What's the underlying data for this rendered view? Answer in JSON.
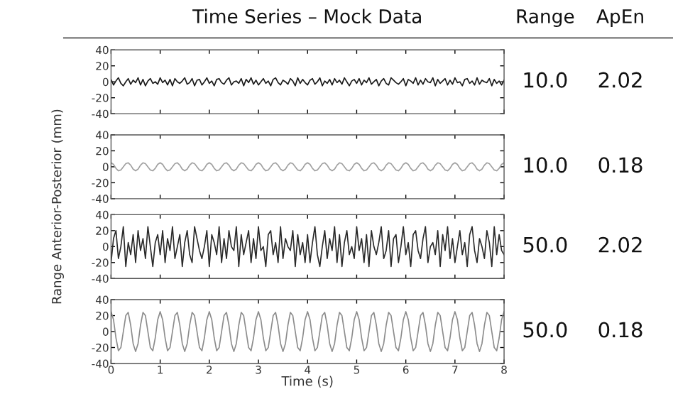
{
  "chart_data": [
    {
      "type": "line",
      "title": "Time Series – Mock Data",
      "ylabel": "Range Anterior-Posterior (mm)",
      "xlim": [
        0,
        8
      ],
      "ylim": [
        -40,
        40
      ],
      "yticks": [
        -40,
        -20,
        0,
        20,
        40
      ],
      "tick_labels": "y",
      "grid": false,
      "legend": false,
      "x": [
        0,
        0.05,
        0.1,
        0.15,
        0.2,
        0.25,
        0.3,
        0.35,
        0.4,
        0.45,
        0.5,
        0.55,
        0.6,
        0.65,
        0.7,
        0.75,
        0.8,
        0.85,
        0.9,
        0.95,
        1,
        1.05,
        1.1,
        1.15,
        1.2,
        1.25,
        1.3,
        1.35,
        1.4,
        1.45,
        1.5,
        1.55,
        1.6,
        1.65,
        1.7,
        1.75,
        1.8,
        1.85,
        1.9,
        1.95,
        2,
        2.05,
        2.1,
        2.15,
        2.2,
        2.25,
        2.3,
        2.35,
        2.4,
        2.45,
        2.5,
        2.55,
        2.6,
        2.65,
        2.7,
        2.75,
        2.8,
        2.85,
        2.9,
        2.95,
        3,
        3.05,
        3.1,
        3.15,
        3.2,
        3.25,
        3.3,
        3.35,
        3.4,
        3.45,
        3.5,
        3.55,
        3.6,
        3.65,
        3.7,
        3.75,
        3.8,
        3.85,
        3.9,
        3.95,
        4,
        4.05,
        4.1,
        4.15,
        4.2,
        4.25,
        4.3,
        4.35,
        4.4,
        4.45,
        4.5,
        4.55,
        4.6,
        4.65,
        4.7,
        4.75,
        4.8,
        4.85,
        4.9,
        4.95,
        5,
        5.05,
        5.1,
        5.15,
        5.2,
        5.25,
        5.3,
        5.35,
        5.4,
        5.45,
        5.5,
        5.55,
        5.6,
        5.65,
        5.7,
        5.75,
        5.8,
        5.85,
        5.9,
        5.95,
        6,
        6.05,
        6.1,
        6.15,
        6.2,
        6.25,
        6.3,
        6.35,
        6.4,
        6.45,
        6.5,
        6.55,
        6.6,
        6.65,
        6.7,
        6.75,
        6.8,
        6.85,
        6.9,
        6.95,
        7,
        7.05,
        7.1,
        7.15,
        7.2,
        7.25,
        7.3,
        7.35,
        7.4,
        7.45,
        7.5,
        7.55,
        7.6,
        7.65,
        7.7,
        7.75,
        7.8,
        7.85,
        7.9,
        7.95,
        8
      ],
      "series": [
        {
          "color": "#1a1a1a",
          "values": [
            3,
            -4,
            1,
            5,
            -2,
            -5,
            0,
            4,
            -3,
            2,
            -1,
            5,
            -4,
            3,
            -5,
            1,
            4,
            -2,
            0,
            -3,
            5,
            -1,
            2,
            -4,
            3,
            -5,
            4,
            0,
            -2,
            1,
            5,
            -3,
            -1,
            4,
            -5,
            2,
            3,
            -4,
            0,
            5,
            -2,
            1,
            -5,
            3,
            4,
            -1,
            -3,
            2,
            5,
            -4,
            0,
            1,
            -2,
            4,
            -5,
            3,
            -1,
            5,
            -3,
            2,
            -4,
            0,
            4,
            -2,
            1,
            -5,
            3,
            5,
            -1,
            -4,
            2,
            0,
            -3,
            4,
            1,
            -5,
            5,
            -2,
            3,
            -1,
            -4,
            2,
            4,
            -3,
            0,
            5,
            -5,
            1,
            -2,
            3,
            -4,
            4,
            -1,
            2,
            -3,
            5,
            0,
            -5,
            1,
            3,
            -2,
            4,
            -4,
            2,
            -1,
            5,
            -3,
            0,
            3,
            -5,
            1,
            4,
            -2,
            -4,
            5,
            2,
            -1,
            -3,
            0,
            4,
            -5,
            3,
            1,
            -2,
            5,
            -4,
            2,
            -3,
            4,
            0,
            -1,
            5,
            -5,
            3,
            -2,
            1,
            4,
            -4,
            2,
            -3,
            5,
            -1,
            0,
            -5,
            3,
            4,
            -2,
            1,
            -4,
            5,
            -3,
            2,
            0,
            -1,
            4,
            -5,
            3,
            -2,
            1,
            -4,
            2
          ]
        }
      ]
    },
    {
      "type": "line",
      "xlim": [
        0,
        8
      ],
      "ylim": [
        -40,
        40
      ],
      "yticks": [
        -40,
        -20,
        0,
        20,
        40
      ],
      "tick_labels": "y",
      "grid": false,
      "legend": false,
      "x": [
        0,
        0.05,
        0.1,
        0.15,
        0.2,
        0.25,
        0.3,
        0.35,
        0.4,
        0.45,
        0.5,
        0.55,
        0.6,
        0.65,
        0.7,
        0.75,
        0.8,
        0.85,
        0.9,
        0.95,
        1,
        1.05,
        1.1,
        1.15,
        1.2,
        1.25,
        1.3,
        1.35,
        1.4,
        1.45,
        1.5,
        1.55,
        1.6,
        1.65,
        1.7,
        1.75,
        1.8,
        1.85,
        1.9,
        1.95,
        2,
        2.05,
        2.1,
        2.15,
        2.2,
        2.25,
        2.3,
        2.35,
        2.4,
        2.45,
        2.5,
        2.55,
        2.6,
        2.65,
        2.7,
        2.75,
        2.8,
        2.85,
        2.9,
        2.95,
        3,
        3.05,
        3.1,
        3.15,
        3.2,
        3.25,
        3.3,
        3.35,
        3.4,
        3.45,
        3.5,
        3.55,
        3.6,
        3.65,
        3.7,
        3.75,
        3.8,
        3.85,
        3.9,
        3.95,
        4,
        4.05,
        4.1,
        4.15,
        4.2,
        4.25,
        4.3,
        4.35,
        4.4,
        4.45,
        4.5,
        4.55,
        4.6,
        4.65,
        4.7,
        4.75,
        4.8,
        4.85,
        4.9,
        4.95,
        5,
        5.05,
        5.1,
        5.15,
        5.2,
        5.25,
        5.3,
        5.35,
        5.4,
        5.45,
        5.5,
        5.55,
        5.6,
        5.65,
        5.7,
        5.75,
        5.8,
        5.85,
        5.9,
        5.95,
        6,
        6.05,
        6.1,
        6.15,
        6.2,
        6.25,
        6.3,
        6.35,
        6.4,
        6.45,
        6.5,
        6.55,
        6.6,
        6.65,
        6.7,
        6.75,
        6.8,
        6.85,
        6.9,
        6.95,
        7,
        7.05,
        7.1,
        7.15,
        7.2,
        7.25,
        7.3,
        7.35,
        7.4,
        7.45,
        7.5,
        7.55,
        7.6,
        7.65,
        7.7,
        7.75,
        7.8,
        7.85,
        7.9,
        7.95,
        8
      ],
      "series": [
        {
          "color": "#a0a0a0",
          "values": [
            5,
            3,
            -2,
            -5,
            -4,
            0,
            4,
            5,
            2,
            -3,
            -5,
            -3,
            2,
            5,
            4,
            0,
            -4,
            -5,
            -2,
            3,
            5,
            3,
            -2,
            -5,
            -4,
            0,
            4,
            5,
            2,
            -3,
            -5,
            -3,
            2,
            5,
            4,
            0,
            -4,
            -5,
            -2,
            3,
            5,
            3,
            -2,
            -5,
            -4,
            0,
            4,
            5,
            2,
            -3,
            -5,
            -3,
            2,
            5,
            4,
            0,
            -4,
            -5,
            -2,
            3,
            5,
            3,
            -2,
            -5,
            -4,
            0,
            4,
            5,
            2,
            -3,
            -5,
            -3,
            2,
            5,
            4,
            0,
            -4,
            -5,
            -2,
            3,
            5,
            3,
            -2,
            -5,
            -4,
            0,
            4,
            5,
            2,
            -3,
            -5,
            -3,
            2,
            5,
            4,
            0,
            -4,
            -5,
            -2,
            3,
            5,
            3,
            -2,
            -5,
            -4,
            0,
            4,
            5,
            2,
            -3,
            -5,
            -3,
            2,
            5,
            4,
            0,
            -4,
            -5,
            -2,
            3,
            5,
            3,
            -2,
            -5,
            -4,
            0,
            4,
            5,
            2,
            -3,
            -5,
            -3,
            2,
            5,
            4,
            0,
            -4,
            -5,
            -2,
            3,
            5,
            3,
            -2,
            -5,
            -4,
            0,
            4,
            5,
            2,
            -3,
            -5,
            -3,
            2,
            5,
            4,
            0,
            -4,
            -5,
            -2,
            3,
            5
          ]
        }
      ]
    },
    {
      "type": "line",
      "xlim": [
        0,
        8
      ],
      "ylim": [
        -40,
        40
      ],
      "yticks": [
        -40,
        -20,
        0,
        20,
        40
      ],
      "tick_labels": "y",
      "grid": false,
      "legend": false,
      "x": [
        0,
        0.05,
        0.1,
        0.15,
        0.2,
        0.25,
        0.3,
        0.35,
        0.4,
        0.45,
        0.5,
        0.55,
        0.6,
        0.65,
        0.7,
        0.75,
        0.8,
        0.85,
        0.9,
        0.95,
        1,
        1.05,
        1.1,
        1.15,
        1.2,
        1.25,
        1.3,
        1.35,
        1.4,
        1.45,
        1.5,
        1.55,
        1.6,
        1.65,
        1.7,
        1.75,
        1.8,
        1.85,
        1.9,
        1.95,
        2,
        2.05,
        2.1,
        2.15,
        2.2,
        2.25,
        2.3,
        2.35,
        2.4,
        2.45,
        2.5,
        2.55,
        2.6,
        2.65,
        2.7,
        2.75,
        2.8,
        2.85,
        2.9,
        2.95,
        3,
        3.05,
        3.1,
        3.15,
        3.2,
        3.25,
        3.3,
        3.35,
        3.4,
        3.45,
        3.5,
        3.55,
        3.6,
        3.65,
        3.7,
        3.75,
        3.8,
        3.85,
        3.9,
        3.95,
        4,
        4.05,
        4.1,
        4.15,
        4.2,
        4.25,
        4.3,
        4.35,
        4.4,
        4.45,
        4.5,
        4.55,
        4.6,
        4.65,
        4.7,
        4.75,
        4.8,
        4.85,
        4.9,
        4.95,
        5,
        5.05,
        5.1,
        5.15,
        5.2,
        5.25,
        5.3,
        5.35,
        5.4,
        5.45,
        5.5,
        5.55,
        5.6,
        5.65,
        5.7,
        5.75,
        5.8,
        5.85,
        5.9,
        5.95,
        6,
        6.05,
        6.1,
        6.15,
        6.2,
        6.25,
        6.3,
        6.35,
        6.4,
        6.45,
        6.5,
        6.55,
        6.6,
        6.65,
        6.7,
        6.75,
        6.8,
        6.85,
        6.9,
        6.95,
        7,
        7.05,
        7.1,
        7.15,
        7.2,
        7.25,
        7.3,
        7.35,
        7.4,
        7.45,
        7.5,
        7.55,
        7.6,
        7.65,
        7.7,
        7.75,
        7.8,
        7.85,
        7.9,
        7.95,
        8
      ],
      "series": [
        {
          "color": "#2a2a2a",
          "values": [
            -20,
            10,
            20,
            -15,
            0,
            25,
            -25,
            5,
            -10,
            15,
            -20,
            20,
            -5,
            10,
            -15,
            25,
            0,
            -25,
            5,
            15,
            -10,
            20,
            -20,
            10,
            -5,
            25,
            -15,
            0,
            15,
            -25,
            5,
            20,
            -10,
            -20,
            25,
            10,
            -5,
            -15,
            0,
            20,
            -25,
            15,
            5,
            -10,
            25,
            -20,
            10,
            -15,
            20,
            0,
            -5,
            25,
            -25,
            15,
            -10,
            5,
            20,
            -20,
            10,
            -15,
            25,
            -5,
            0,
            -25,
            15,
            20,
            -10,
            5,
            -20,
            25,
            -15,
            10,
            0,
            -5,
            20,
            -25,
            15,
            -10,
            5,
            -20,
            15,
            -20,
            5,
            25,
            -10,
            -25,
            0,
            20,
            -15,
            10,
            -5,
            25,
            -20,
            15,
            -25,
            5,
            20,
            -10,
            0,
            -15,
            25,
            -5,
            10,
            -20,
            15,
            -25,
            20,
            0,
            -10,
            5,
            25,
            -15,
            -5,
            20,
            -25,
            10,
            15,
            -20,
            0,
            25,
            -10,
            5,
            -25,
            15,
            20,
            -5,
            -15,
            10,
            25,
            -20,
            0,
            5,
            -10,
            20,
            -25,
            15,
            -5,
            25,
            -15,
            10,
            -20,
            0,
            20,
            -10,
            5,
            -25,
            15,
            25,
            -5,
            -20,
            10,
            0,
            -15,
            20,
            5,
            -25,
            25,
            -10,
            15,
            -5,
            -10
          ]
        }
      ]
    },
    {
      "type": "line",
      "xlabel": "Time (s)",
      "xlim": [
        0,
        8
      ],
      "xticks": [
        0,
        1,
        2,
        3,
        4,
        5,
        6,
        7,
        8
      ],
      "ylim": [
        -40,
        40
      ],
      "yticks": [
        -40,
        -20,
        0,
        20,
        40
      ],
      "grid": false,
      "legend": false,
      "x": [
        0,
        0.05,
        0.1,
        0.15,
        0.2,
        0.25,
        0.3,
        0.35,
        0.4,
        0.45,
        0.5,
        0.55,
        0.6,
        0.65,
        0.7,
        0.75,
        0.8,
        0.85,
        0.9,
        0.95,
        1,
        1.05,
        1.1,
        1.15,
        1.2,
        1.25,
        1.3,
        1.35,
        1.4,
        1.45,
        1.5,
        1.55,
        1.6,
        1.65,
        1.7,
        1.75,
        1.8,
        1.85,
        1.9,
        1.95,
        2,
        2.05,
        2.1,
        2.15,
        2.2,
        2.25,
        2.3,
        2.35,
        2.4,
        2.45,
        2.5,
        2.55,
        2.6,
        2.65,
        2.7,
        2.75,
        2.8,
        2.85,
        2.9,
        2.95,
        3,
        3.05,
        3.1,
        3.15,
        3.2,
        3.25,
        3.3,
        3.35,
        3.4,
        3.45,
        3.5,
        3.55,
        3.6,
        3.65,
        3.7,
        3.75,
        3.8,
        3.85,
        3.9,
        3.95,
        4,
        4.05,
        4.1,
        4.15,
        4.2,
        4.25,
        4.3,
        4.35,
        4.4,
        4.45,
        4.5,
        4.55,
        4.6,
        4.65,
        4.7,
        4.75,
        4.8,
        4.85,
        4.9,
        4.95,
        5,
        5.05,
        5.1,
        5.15,
        5.2,
        5.25,
        5.3,
        5.35,
        5.4,
        5.45,
        5.5,
        5.55,
        5.6,
        5.65,
        5.7,
        5.75,
        5.8,
        5.85,
        5.9,
        5.95,
        6,
        6.05,
        6.1,
        6.15,
        6.2,
        6.25,
        6.3,
        6.35,
        6.4,
        6.45,
        6.5,
        6.55,
        6.6,
        6.65,
        6.7,
        6.75,
        6.8,
        6.85,
        6.9,
        6.95,
        7,
        7.05,
        7.1,
        7.15,
        7.2,
        7.25,
        7.3,
        7.35,
        7.4,
        7.45,
        7.5,
        7.55,
        7.6,
        7.65,
        7.7,
        7.75,
        7.8,
        7.85,
        7.9,
        7.95,
        8
      ],
      "series": [
        {
          "color": "#8c8c8c",
          "values": [
            25,
            15,
            -8,
            -24,
            -20,
            0,
            20,
            24,
            8,
            -15,
            -25,
            -15,
            8,
            24,
            20,
            0,
            -20,
            -24,
            -8,
            15,
            25,
            15,
            -8,
            -24,
            -20,
            0,
            20,
            24,
            8,
            -15,
            -25,
            -15,
            8,
            24,
            20,
            0,
            -20,
            -24,
            -8,
            15,
            25,
            15,
            -8,
            -24,
            -20,
            0,
            20,
            24,
            8,
            -15,
            -25,
            -15,
            8,
            24,
            20,
            0,
            -20,
            -24,
            -8,
            15,
            25,
            15,
            -8,
            -24,
            -20,
            0,
            20,
            24,
            8,
            -15,
            -25,
            -15,
            8,
            24,
            20,
            0,
            -20,
            -24,
            -8,
            15,
            25,
            15,
            -8,
            -24,
            -20,
            0,
            20,
            24,
            8,
            -15,
            -25,
            -15,
            8,
            24,
            20,
            0,
            -20,
            -24,
            -8,
            15,
            25,
            15,
            -8,
            -24,
            -20,
            0,
            20,
            24,
            8,
            -15,
            -25,
            -15,
            8,
            24,
            20,
            0,
            -20,
            -24,
            -8,
            15,
            25,
            15,
            -8,
            -24,
            -20,
            0,
            20,
            24,
            8,
            -15,
            -25,
            -15,
            8,
            24,
            20,
            0,
            -20,
            -24,
            -8,
            15,
            25,
            15,
            -8,
            -24,
            -20,
            0,
            20,
            24,
            8,
            -15,
            -25,
            -15,
            8,
            24,
            20,
            0,
            -20,
            -24,
            -8,
            15,
            25
          ]
        }
      ]
    },
    {
      "type": "other",
      "annotations": [
        "Range",
        "ApEn",
        "10.0",
        "2.02",
        "10.0",
        "0.18",
        "50.0",
        "2.02",
        "50.0",
        "0.18"
      ]
    }
  ]
}
